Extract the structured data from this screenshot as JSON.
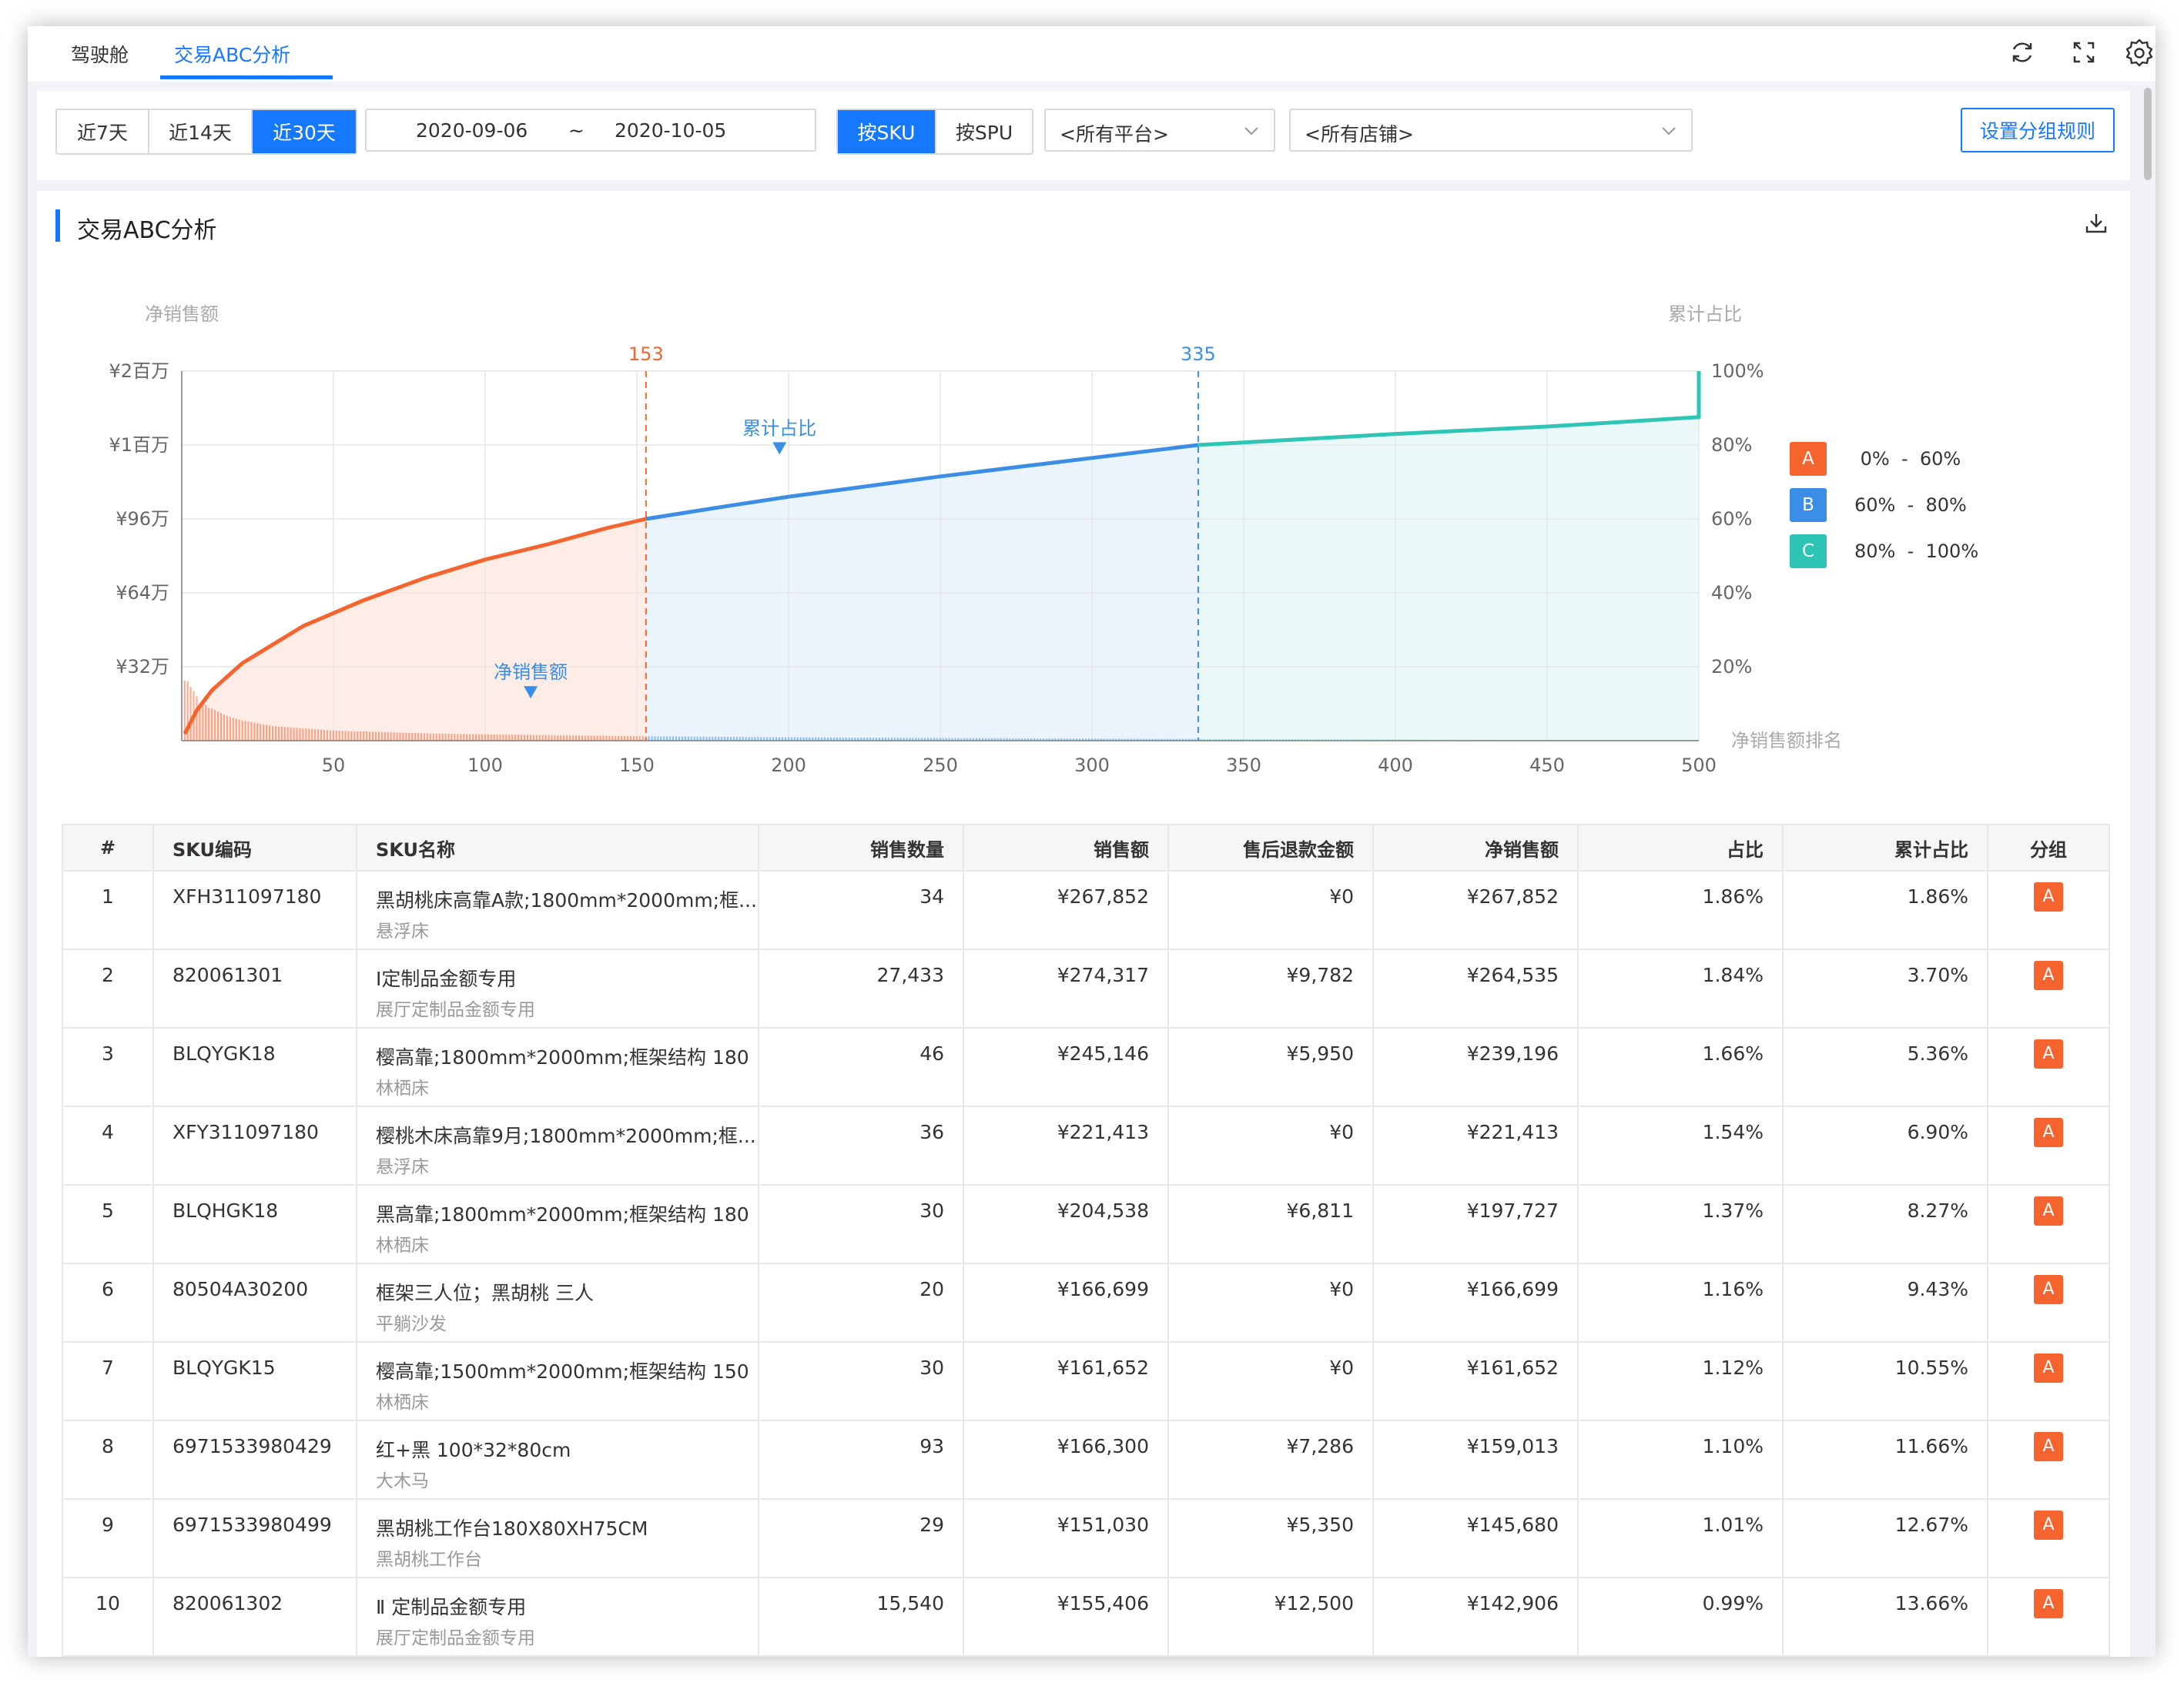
{
  "tabs": [
    {
      "label": "驾驶舱",
      "active": false
    },
    {
      "label": "交易ABC分析",
      "active": true
    }
  ],
  "top_icons": [
    "refresh-icon",
    "fullscreen-icon",
    "settings-icon"
  ],
  "filters": {
    "range_buttons": [
      {
        "label": "近7天",
        "active": false
      },
      {
        "label": "近14天",
        "active": false
      },
      {
        "label": "近30天",
        "active": true
      }
    ],
    "date_start": "2020-09-06",
    "date_sep": "~",
    "date_end": "2020-10-05",
    "dimension_buttons": [
      {
        "label": "按SKU",
        "active": true
      },
      {
        "label": "按SPU",
        "active": false
      }
    ],
    "platform_select": "<所有平台>",
    "store_select": "<所有店铺>",
    "rule_button": "设置分组规则"
  },
  "card": {
    "title": "交易ABC分析"
  },
  "chart_data": {
    "type": "line",
    "left_axis_title": "净销售额",
    "right_axis_title": "累计占比",
    "x_axis_title": "净销售额排名",
    "left_ticks": [
      "¥2百万",
      "¥1百万",
      "¥96万",
      "¥64万",
      "¥32万"
    ],
    "right_ticks": [
      "100%",
      "80%",
      "60%",
      "40%",
      "20%"
    ],
    "x_ticks": [
      "50",
      "100",
      "150",
      "200",
      "250",
      "300",
      "350",
      "400",
      "450",
      "500"
    ],
    "xlim": [
      0,
      500
    ],
    "ylim_right": [
      0,
      100
    ],
    "markers": [
      {
        "label": "153",
        "x": 153,
        "color": "#f5632e"
      },
      {
        "label": "335",
        "x": 335,
        "color": "#3a8ee6"
      }
    ],
    "series": [
      {
        "name": "累计占比",
        "kind": "cumulative",
        "points": [
          [
            1,
            1.86
          ],
          [
            5,
            8.27
          ],
          [
            10,
            13.66
          ],
          [
            20,
            21
          ],
          [
            40,
            31
          ],
          [
            60,
            38
          ],
          [
            80,
            44
          ],
          [
            100,
            49
          ],
          [
            120,
            53
          ],
          [
            140,
            57.5
          ],
          [
            153,
            60
          ],
          [
            180,
            63.5
          ],
          [
            200,
            66
          ],
          [
            250,
            71.5
          ],
          [
            300,
            76.5
          ],
          [
            335,
            80
          ],
          [
            400,
            83
          ],
          [
            450,
            85
          ],
          [
            499,
            87.5
          ],
          [
            500,
            100
          ]
        ]
      },
      {
        "name": "净销售额",
        "kind": "bars",
        "points": [
          [
            1,
            267852
          ],
          [
            2,
            264535
          ],
          [
            3,
            239196
          ],
          [
            4,
            221413
          ],
          [
            5,
            197727
          ],
          [
            6,
            166699
          ],
          [
            7,
            161652
          ],
          [
            8,
            159013
          ],
          [
            9,
            145680
          ],
          [
            10,
            142906
          ],
          [
            15,
            110000
          ],
          [
            20,
            90000
          ],
          [
            30,
            65000
          ],
          [
            50,
            45000
          ],
          [
            80,
            33000
          ],
          [
            100,
            28000
          ],
          [
            150,
            20000
          ],
          [
            200,
            15000
          ],
          [
            300,
            9000
          ],
          [
            400,
            5000
          ],
          [
            500,
            1000
          ]
        ]
      }
    ],
    "series_labels": [
      {
        "text": "累计占比",
        "x": 197,
        "y": 72
      },
      {
        "text": "净销售额",
        "x": 115,
        "y": 6
      }
    ],
    "groups": [
      {
        "name": "A",
        "from": 0,
        "to": 153,
        "color": "#f5632e"
      },
      {
        "name": "B",
        "from": 153,
        "to": 335,
        "color": "#3a8ee6"
      },
      {
        "name": "C",
        "from": 335,
        "to": 500,
        "color": "#2ec4b6"
      }
    ]
  },
  "legend": [
    {
      "badge": "A",
      "range": " 0%  -  60%",
      "color": "#f5632e"
    },
    {
      "badge": "B",
      "range": "60%  -  80%",
      "color": "#3a8ee6"
    },
    {
      "badge": "C",
      "range": "80%  -  100%",
      "color": "#2ec4b6"
    }
  ],
  "table": {
    "headers": [
      "#",
      "SKU编码",
      "SKU名称",
      "销售数量",
      "销售额",
      "售后退款金额",
      "净销售额",
      "占比",
      "累计占比",
      "分组"
    ],
    "rows": [
      {
        "idx": "1",
        "code": "XFH311097180",
        "name": "黑胡桃床高靠A款;1800mm*2000mm;框...",
        "sub": "悬浮床",
        "qty": "34",
        "sales": "¥267,852",
        "refund": "¥0",
        "net": "¥267,852",
        "pct": "1.86%",
        "cum": "1.86%",
        "group": "A"
      },
      {
        "idx": "2",
        "code": "820061301",
        "name": "Ⅰ定制品金额专用",
        "sub": "展厅定制品金额专用",
        "qty": "27,433",
        "sales": "¥274,317",
        "refund": "¥9,782",
        "net": "¥264,535",
        "pct": "1.84%",
        "cum": "3.70%",
        "group": "A"
      },
      {
        "idx": "3",
        "code": "BLQYGK18",
        "name": "樱高靠;1800mm*2000mm;框架结构 180",
        "sub": "林栖床",
        "qty": "46",
        "sales": "¥245,146",
        "refund": "¥5,950",
        "net": "¥239,196",
        "pct": "1.66%",
        "cum": "5.36%",
        "group": "A"
      },
      {
        "idx": "4",
        "code": "XFY311097180",
        "name": "樱桃木床高靠9月;1800mm*2000mm;框...",
        "sub": "悬浮床",
        "qty": "36",
        "sales": "¥221,413",
        "refund": "¥0",
        "net": "¥221,413",
        "pct": "1.54%",
        "cum": "6.90%",
        "group": "A"
      },
      {
        "idx": "5",
        "code": "BLQHGK18",
        "name": "黑高靠;1800mm*2000mm;框架结构 180",
        "sub": "林栖床",
        "qty": "30",
        "sales": "¥204,538",
        "refund": "¥6,811",
        "net": "¥197,727",
        "pct": "1.37%",
        "cum": "8.27%",
        "group": "A"
      },
      {
        "idx": "6",
        "code": "80504A30200",
        "name": "框架三人位；黑胡桃 三人",
        "sub": "平躺沙发",
        "qty": "20",
        "sales": "¥166,699",
        "refund": "¥0",
        "net": "¥166,699",
        "pct": "1.16%",
        "cum": "9.43%",
        "group": "A"
      },
      {
        "idx": "7",
        "code": "BLQYGK15",
        "name": "樱高靠;1500mm*2000mm;框架结构 150",
        "sub": "林栖床",
        "qty": "30",
        "sales": "¥161,652",
        "refund": "¥0",
        "net": "¥161,652",
        "pct": "1.12%",
        "cum": "10.55%",
        "group": "A"
      },
      {
        "idx": "8",
        "code": "6971533980429",
        "name": "红+黑 100*32*80cm",
        "sub": "大木马",
        "qty": "93",
        "sales": "¥166,300",
        "refund": "¥7,286",
        "net": "¥159,013",
        "pct": "1.10%",
        "cum": "11.66%",
        "group": "A"
      },
      {
        "idx": "9",
        "code": "6971533980499",
        "name": "黑胡桃工作台180X80XH75CM",
        "sub": "黑胡桃工作台",
        "qty": "29",
        "sales": "¥151,030",
        "refund": "¥5,350",
        "net": "¥145,680",
        "pct": "1.01%",
        "cum": "12.67%",
        "group": "A"
      },
      {
        "idx": "10",
        "code": "820061302",
        "name": "Ⅱ 定制品金额专用",
        "sub": "展厅定制品金额专用",
        "qty": "15,540",
        "sales": "¥155,406",
        "refund": "¥12,500",
        "net": "¥142,906",
        "pct": "0.99%",
        "cum": "13.66%",
        "group": "A"
      }
    ]
  }
}
